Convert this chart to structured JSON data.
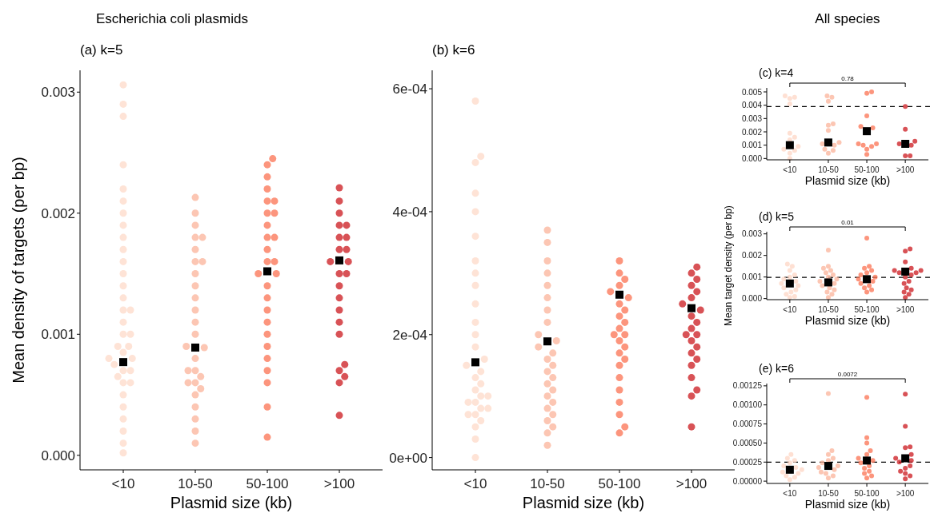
{
  "chart_data": [
    {
      "type": "scatter",
      "title": "Escherichia coli plasmids",
      "subtitle": "(a) k=5",
      "xlabel": "Plasmid size (kb)",
      "ylabel": "Mean density of targets (per bp)",
      "categories": [
        "<10",
        "10-50",
        "50-100",
        ">100"
      ],
      "ylim": [
        -0.00012,
        0.00318
      ],
      "yticks": [
        {
          "value": 0,
          "label": "0.000"
        },
        {
          "value": 0.001,
          "label": "0.001"
        },
        {
          "value": 0.002,
          "label": "0.002"
        },
        {
          "value": 0.003,
          "label": "0.003"
        }
      ],
      "marker": "circle",
      "series": [
        {
          "color": "#fdd9c8",
          "x": [
            "<10",
            "<10",
            "<10",
            "<10",
            "<10",
            "<10",
            "<10",
            "<10",
            "<10",
            "<10",
            "<10",
            "<10",
            "<10",
            "<10",
            "<10",
            "<10",
            "<10",
            "<10",
            "<10",
            "<10",
            "<10",
            "<10",
            "<10",
            "<10",
            "<10",
            "<10",
            "<10",
            "<10",
            "<10",
            "<10",
            "<10",
            "<10",
            "<10",
            "<10",
            "<10",
            "<10"
          ],
          "values": [
            0.00306,
            0.0029,
            0.0028,
            0.0024,
            0.0022,
            0.0021,
            0.002,
            0.0019,
            0.0018,
            0.0017,
            0.0016,
            0.0015,
            0.0014,
            0.0013,
            0.0012,
            0.0012,
            0.0011,
            0.001,
            0.001,
            0.0009,
            0.0009,
            0.00085,
            0.0008,
            0.0008,
            0.00075,
            0.0007,
            0.0007,
            0.00065,
            0.0006,
            0.0006,
            0.0005,
            0.0004,
            0.0003,
            0.0002,
            0.0001,
            2e-05
          ]
        },
        {
          "color": "#fbb39a",
          "x": [
            "10-50",
            "10-50",
            "10-50",
            "10-50",
            "10-50",
            "10-50",
            "10-50",
            "10-50",
            "10-50",
            "10-50",
            "10-50",
            "10-50",
            "10-50",
            "10-50",
            "10-50",
            "10-50",
            "10-50",
            "10-50",
            "10-50",
            "10-50",
            "10-50",
            "10-50",
            "10-50",
            "10-50",
            "10-50",
            "10-50",
            "10-50",
            "10-50"
          ],
          "values": [
            0.00213,
            0.002,
            0.0019,
            0.0018,
            0.0018,
            0.0017,
            0.0016,
            0.0016,
            0.0015,
            0.0014,
            0.0013,
            0.0012,
            0.0011,
            0.001,
            0.0009,
            0.00089,
            0.0008,
            0.0007,
            0.0007,
            0.00065,
            0.0006,
            0.0006,
            0.00055,
            0.0005,
            0.0004,
            0.0003,
            0.0002,
            0.0001
          ]
        },
        {
          "color": "#fb7252",
          "x": [
            "50-100",
            "50-100",
            "50-100",
            "50-100",
            "50-100",
            "50-100",
            "50-100",
            "50-100",
            "50-100",
            "50-100",
            "50-100",
            "50-100",
            "50-100",
            "50-100",
            "50-100",
            "50-100",
            "50-100",
            "50-100",
            "50-100",
            "50-100",
            "50-100",
            "50-100",
            "50-100",
            "50-100",
            "50-100",
            "50-100",
            "50-100"
          ],
          "values": [
            0.00245,
            0.0024,
            0.0023,
            0.0022,
            0.0021,
            0.0021,
            0.002,
            0.002,
            0.0019,
            0.0018,
            0.0018,
            0.0017,
            0.0016,
            0.0016,
            0.0015,
            0.0015,
            0.0014,
            0.0013,
            0.0012,
            0.0011,
            0.001,
            0.0009,
            0.0008,
            0.0007,
            0.0006,
            0.0004,
            0.00015
          ]
        },
        {
          "color": "#cb181d",
          "x": [
            ">100",
            ">100",
            ">100",
            ">100",
            ">100",
            ">100",
            ">100",
            ">100",
            ">100",
            ">100",
            ">100",
            ">100",
            ">100",
            ">100",
            ">100",
            ">100",
            ">100",
            ">100",
            ">100",
            ">100",
            ">100",
            ">100",
            ">100"
          ],
          "values": [
            0.00221,
            0.0021,
            0.002,
            0.0019,
            0.0019,
            0.0018,
            0.0018,
            0.0017,
            0.0017,
            0.0016,
            0.0016,
            0.0015,
            0.0015,
            0.0014,
            0.0013,
            0.0012,
            0.0011,
            0.001,
            0.00075,
            0.0007,
            0.00065,
            0.0006,
            0.00033
          ]
        },
        {
          "color": "#000000",
          "marker": "square",
          "x": [
            "<10",
            "10-50",
            "50-100",
            ">100"
          ],
          "values": [
            0.00077,
            0.00089,
            0.00152,
            0.00161
          ]
        }
      ]
    },
    {
      "type": "scatter",
      "subtitle": "(b) k=6",
      "xlabel": "Plasmid size (kb)",
      "categories": [
        "<10",
        "10-50",
        "50-100",
        ">100"
      ],
      "ylim": [
        -2e-05,
        0.00063
      ],
      "yticks": [
        {
          "value": 0,
          "label": "0e+00"
        },
        {
          "value": 0.0002,
          "label": "2e-04"
        },
        {
          "value": 0.0004,
          "label": "4e-04"
        },
        {
          "value": 0.0006,
          "label": "6e-04"
        }
      ],
      "marker": "circle",
      "series": [
        {
          "color": "#fdd9c8",
          "x": [
            "<10",
            "<10",
            "<10",
            "<10",
            "<10",
            "<10",
            "<10",
            "<10",
            "<10",
            "<10",
            "<10",
            "<10",
            "<10",
            "<10",
            "<10",
            "<10",
            "<10",
            "<10",
            "<10",
            "<10",
            "<10",
            "<10",
            "<10",
            "<10",
            "<10",
            "<10",
            "<10",
            "<10",
            "<10",
            "<10",
            "<10"
          ],
          "values": [
            0.00058,
            0.00049,
            0.00048,
            0.00043,
            0.0004,
            0.00036,
            0.00032,
            0.0003,
            0.00028,
            0.00025,
            0.00022,
            0.0002,
            0.00018,
            0.00016,
            0.00015,
            0.00014,
            0.00013,
            0.00012,
            0.00011,
            0.0001,
            0.0001,
            9e-05,
            9e-05,
            8e-05,
            8e-05,
            7e-05,
            7e-05,
            6e-05,
            5e-05,
            3e-05,
            0
          ]
        },
        {
          "color": "#fbb39a",
          "x": [
            "10-50",
            "10-50",
            "10-50",
            "10-50",
            "10-50",
            "10-50",
            "10-50",
            "10-50",
            "10-50",
            "10-50",
            "10-50",
            "10-50",
            "10-50",
            "10-50",
            "10-50",
            "10-50",
            "10-50",
            "10-50",
            "10-50",
            "10-50",
            "10-50",
            "10-50",
            "10-50",
            "10-50",
            "10-50",
            "10-50"
          ],
          "values": [
            0.00037,
            0.00035,
            0.00032,
            0.0003,
            0.00028,
            0.00026,
            0.00024,
            0.00022,
            0.0002,
            0.00019,
            0.00018,
            0.00017,
            0.00016,
            0.00015,
            0.00014,
            0.00013,
            0.00012,
            0.00011,
            0.0001,
            9e-05,
            8e-05,
            7e-05,
            6e-05,
            5e-05,
            4e-05,
            2e-05
          ]
        },
        {
          "color": "#fb7252",
          "x": [
            "50-100",
            "50-100",
            "50-100",
            "50-100",
            "50-100",
            "50-100",
            "50-100",
            "50-100",
            "50-100",
            "50-100",
            "50-100",
            "50-100",
            "50-100",
            "50-100",
            "50-100",
            "50-100",
            "50-100",
            "50-100",
            "50-100",
            "50-100",
            "50-100",
            "50-100",
            "50-100",
            "50-100"
          ],
          "values": [
            0.00032,
            0.0003,
            0.00029,
            0.00028,
            0.00027,
            0.00026,
            0.00025,
            0.00024,
            0.00023,
            0.00022,
            0.00021,
            0.0002,
            0.0002,
            0.00019,
            0.00018,
            0.00017,
            0.00016,
            0.00015,
            0.00013,
            0.00011,
            9e-05,
            7e-05,
            5e-05,
            4e-05
          ]
        },
        {
          "color": "#cb181d",
          "x": [
            ">100",
            ">100",
            ">100",
            ">100",
            ">100",
            ">100",
            ">100",
            ">100",
            ">100",
            ">100",
            ">100",
            ">100",
            ">100",
            ">100",
            ">100",
            ">100",
            ">100",
            ">100",
            ">100",
            ">100",
            ">100",
            ">100"
          ],
          "values": [
            0.00031,
            0.0003,
            0.00029,
            0.00028,
            0.00027,
            0.00026,
            0.00025,
            0.00024,
            0.00023,
            0.00022,
            0.00021,
            0.0002,
            0.0002,
            0.00019,
            0.00018,
            0.00017,
            0.00016,
            0.00015,
            0.00013,
            0.00011,
            0.0001,
            5e-05
          ]
        },
        {
          "color": "#000000",
          "marker": "square",
          "x": [
            "<10",
            "10-50",
            "50-100",
            ">100"
          ],
          "values": [
            0.000155,
            0.000189,
            0.000265,
            0.000243
          ]
        }
      ]
    },
    {
      "type": "scatter",
      "title": "All species",
      "subtitle": "(c) k=4",
      "xlabel": "Plasmid size (kb)",
      "categories": [
        "<10",
        "10-50",
        "50-100",
        ">100"
      ],
      "ylim": [
        -0.0001,
        0.0053
      ],
      "yticks": [
        {
          "value": 0,
          "label": "0.000"
        },
        {
          "value": 0.001,
          "label": "0.001"
        },
        {
          "value": 0.002,
          "label": "0.002"
        },
        {
          "value": 0.003,
          "label": "0.003"
        },
        {
          "value": 0.004,
          "label": "0.004"
        },
        {
          "value": 0.005,
          "label": "0.005"
        }
      ],
      "marker": "circle",
      "annotations": [
        "0.78"
      ],
      "ref_lines": [
        {
          "axis": "y",
          "value": 0.0039,
          "line_style": "dashed"
        }
      ],
      "series": [
        {
          "color": "#fdd5c4",
          "x": [
            "<10",
            "<10",
            "<10",
            "<10",
            "<10",
            "<10",
            "<10",
            "<10",
            "<10",
            "<10",
            "<10",
            "<10"
          ],
          "values": [
            0.0047,
            0.0046,
            0.0045,
            0.0041,
            0.0019,
            0.0016,
            0.0014,
            0.0009,
            0.0007,
            0.0006,
            0.0004,
            0
          ]
        },
        {
          "color": "#fbb39a",
          "x": [
            "10-50",
            "10-50",
            "10-50",
            "10-50",
            "10-50",
            "10-50",
            "10-50",
            "10-50",
            "10-50",
            "10-50",
            "10-50",
            "10-50"
          ],
          "values": [
            0.0047,
            0.0046,
            0.0043,
            0.0026,
            0.0025,
            0.0021,
            0.0012,
            0.0011,
            0.001,
            0.0007,
            0.0006,
            0.0004
          ]
        },
        {
          "color": "#fb7252",
          "x": [
            "50-100",
            "50-100",
            "50-100",
            "50-100",
            "50-100",
            "50-100",
            "50-100",
            "50-100",
            "50-100",
            "50-100",
            "50-100"
          ],
          "values": [
            0.005,
            0.0049,
            0.0032,
            0.0024,
            0.0023,
            0.0011,
            0.0011,
            0.001,
            0.0009,
            0.0007,
            0.0003
          ]
        },
        {
          "color": "#cb181d",
          "x": [
            ">100",
            ">100",
            ">100",
            ">100",
            ">100",
            ">100",
            ">100"
          ],
          "values": [
            0.0039,
            0.0022,
            0.0013,
            0.0011,
            0.001,
            0.0002,
            0.0002
          ]
        },
        {
          "color": "#000000",
          "marker": "square",
          "x": [
            "<10",
            "10-50",
            "50-100",
            ">100"
          ],
          "values": [
            0.001,
            0.0012,
            0.00205,
            0.0011
          ]
        }
      ]
    },
    {
      "type": "scatter",
      "subtitle": "(d) k=5",
      "xlabel": "Plasmid size (kb)",
      "ylabel": "Mean target density (per bp)",
      "categories": [
        "<10",
        "10-50",
        "50-100",
        ">100"
      ],
      "ylim": [
        -5e-05,
        0.0031
      ],
      "yticks": [
        {
          "value": 0,
          "label": "0.000"
        },
        {
          "value": 0.001,
          "label": "0.001"
        },
        {
          "value": 0.002,
          "label": "0.002"
        },
        {
          "value": 0.003,
          "label": "0.003"
        }
      ],
      "marker": "circle",
      "annotations": [
        "0.01"
      ],
      "ref_lines": [
        {
          "axis": "y",
          "value": 0.00098,
          "line_style": "dashed"
        }
      ],
      "series": [
        {
          "color": "#fdd5c4",
          "x": [
            "<10",
            "<10",
            "<10",
            "<10",
            "<10",
            "<10",
            "<10",
            "<10",
            "<10",
            "<10",
            "<10",
            "<10",
            "<10",
            "<10",
            "<10"
          ],
          "values": [
            0.0016,
            0.0015,
            0.0013,
            0.0011,
            0.001,
            0.0009,
            0.0008,
            0.0007,
            0.0006,
            0.0005,
            0.0004,
            0.0003,
            0.0002,
            0.0001,
            5e-05
          ]
        },
        {
          "color": "#fbb39a",
          "x": [
            "10-50",
            "10-50",
            "10-50",
            "10-50",
            "10-50",
            "10-50",
            "10-50",
            "10-50",
            "10-50",
            "10-50",
            "10-50",
            "10-50",
            "10-50",
            "10-50",
            "10-50",
            "10-50"
          ],
          "values": [
            0.00225,
            0.0015,
            0.0014,
            0.0013,
            0.0012,
            0.0011,
            0.001,
            0.0009,
            0.0008,
            0.0007,
            0.0006,
            0.0005,
            0.0004,
            0.0003,
            0.0002,
            5e-05
          ]
        },
        {
          "color": "#fb7252",
          "x": [
            "50-100",
            "50-100",
            "50-100",
            "50-100",
            "50-100",
            "50-100",
            "50-100",
            "50-100",
            "50-100",
            "50-100",
            "50-100",
            "50-100",
            "50-100",
            "50-100"
          ],
          "values": [
            0.0028,
            0.0015,
            0.0014,
            0.0013,
            0.0012,
            0.0011,
            0.001,
            0.0009,
            0.0008,
            0.0007,
            0.0006,
            0.0005,
            0.0004,
            0.0003
          ]
        },
        {
          "color": "#cb181d",
          "x": [
            ">100",
            ">100",
            ">100",
            ">100",
            ">100",
            ">100",
            ">100",
            ">100",
            ">100",
            ">100",
            ">100",
            ">100",
            ">100",
            ">100",
            ">100",
            ">100",
            ">100"
          ],
          "values": [
            0.0023,
            0.0022,
            0.0017,
            0.0014,
            0.0013,
            0.0013,
            0.0012,
            0.0012,
            0.0011,
            0.001,
            0.0008,
            0.0007,
            0.0005,
            0.0004,
            0.0003,
            0.0002,
            5e-05
          ]
        },
        {
          "color": "#000000",
          "marker": "square",
          "x": [
            "<10",
            "10-50",
            "50-100",
            ">100"
          ],
          "values": [
            0.0007,
            0.00075,
            0.0009,
            0.00125
          ]
        }
      ]
    },
    {
      "type": "scatter",
      "subtitle": "(e) k=6",
      "xlabel": "Plasmid size (kb)",
      "categories": [
        "<10",
        "10-50",
        "50-100",
        ">100"
      ],
      "ylim": [
        -3e-05,
        0.00128
      ],
      "yticks": [
        {
          "value": 0,
          "label": "0.00000"
        },
        {
          "value": 0.00025,
          "label": "0.00025"
        },
        {
          "value": 0.0005,
          "label": "0.00050"
        },
        {
          "value": 0.00075,
          "label": "0.00075"
        },
        {
          "value": 0.001,
          "label": "0.00100"
        },
        {
          "value": 0.00125,
          "label": "0.00125"
        }
      ],
      "marker": "circle",
      "annotations": [
        "0.0072"
      ],
      "ref_lines": [
        {
          "axis": "y",
          "value": 0.00025,
          "line_style": "dashed"
        }
      ],
      "series": [
        {
          "color": "#fdd5c4",
          "x": [
            "<10",
            "<10",
            "<10",
            "<10",
            "<10",
            "<10",
            "<10",
            "<10",
            "<10",
            "<10",
            "<10",
            "<10"
          ],
          "values": [
            0.00035,
            0.0003,
            0.00027,
            0.00024,
            0.0002,
            0.00018,
            0.00015,
            0.00012,
            0.0001,
            7e-05,
            5e-05,
            2e-05
          ]
        },
        {
          "color": "#fbb39a",
          "x": [
            "10-50",
            "10-50",
            "10-50",
            "10-50",
            "10-50",
            "10-50",
            "10-50",
            "10-50",
            "10-50",
            "10-50",
            "10-50",
            "10-50",
            "10-50"
          ],
          "values": [
            0.00115,
            0.0004,
            0.00035,
            0.0003,
            0.00027,
            0.00024,
            0.0002,
            0.00018,
            0.00015,
            0.00012,
            0.0001,
            7e-05,
            4e-05
          ]
        },
        {
          "color": "#fb7252",
          "x": [
            "50-100",
            "50-100",
            "50-100",
            "50-100",
            "50-100",
            "50-100",
            "50-100",
            "50-100",
            "50-100",
            "50-100",
            "50-100",
            "50-100",
            "50-100",
            "50-100"
          ],
          "values": [
            0.0011,
            0.00057,
            0.0005,
            0.0004,
            0.00035,
            0.0003,
            0.00027,
            0.00024,
            0.0002,
            0.00017,
            0.00013,
            0.0001,
            7e-05,
            4e-05
          ]
        },
        {
          "color": "#cb181d",
          "x": [
            ">100",
            ">100",
            ">100",
            ">100",
            ">100",
            ">100",
            ">100",
            ">100",
            ">100",
            ">100",
            ">100",
            ">100",
            ">100",
            ">100"
          ],
          "values": [
            0.00114,
            0.00072,
            0.00045,
            0.00044,
            0.00035,
            0.0003,
            0.00027,
            0.00025,
            0.0002,
            0.00017,
            0.00013,
            0.0001,
            7e-05,
            3e-05
          ]
        },
        {
          "color": "#000000",
          "marker": "square",
          "x": [
            "<10",
            "10-50",
            "50-100",
            ">100"
          ],
          "values": [
            0.00015,
            0.0002,
            0.00027,
            0.0003
          ]
        }
      ]
    }
  ]
}
